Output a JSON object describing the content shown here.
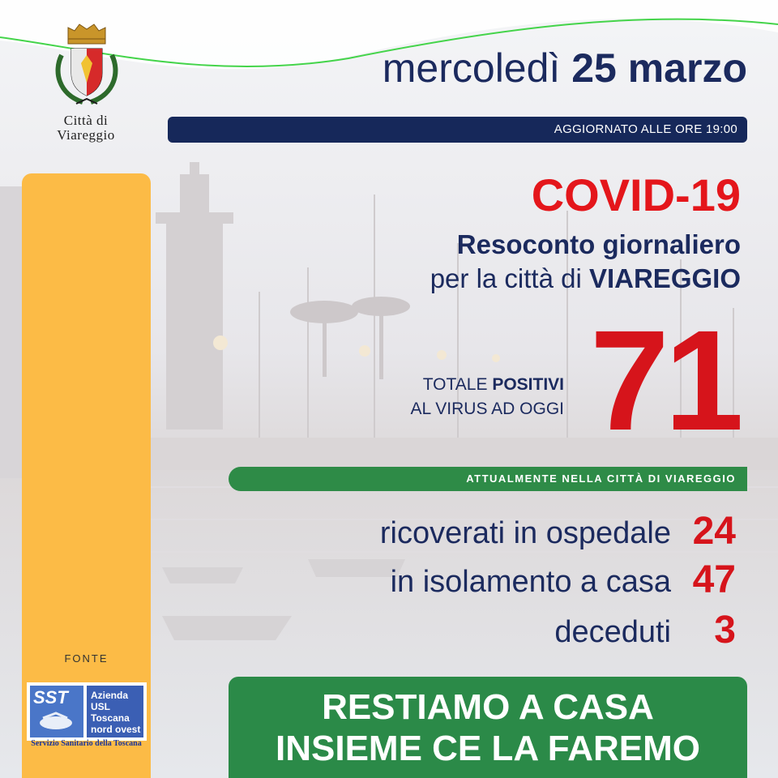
{
  "header": {
    "city_name_line1": "Città di",
    "city_name_line2": "Viareggio",
    "day": "mercoledì",
    "date": "25 marzo",
    "update": "AGGIORNATO ALLE ORE 19:00"
  },
  "title": {
    "covid": "COVID-19",
    "line1": "Resoconto giornaliero",
    "line2_prefix": "per la città di",
    "line2_city": "VIAREGGIO"
  },
  "total": {
    "label_a": "TOTALE",
    "label_b": "POSITIVI",
    "label_c": "AL VIRUS AD OGGI",
    "value": "71"
  },
  "section_bar": "ATTUALMENTE NELLA CITTÀ DI VIAREGGIO",
  "stats": [
    {
      "label": "ricoverati in ospedale",
      "value": "24"
    },
    {
      "label": "in isolamento a casa",
      "value": "47"
    },
    {
      "label": "deceduti",
      "value": "3"
    }
  ],
  "source": {
    "label": "FONTE",
    "logo_text": "SST",
    "logo_line1": "Azienda",
    "logo_line2": "USL",
    "logo_line3": "Toscana",
    "logo_line4": "nord ovest",
    "caption": "Servizio Sanitario della Toscana"
  },
  "footer": {
    "line1": "RESTIAMO A CASA",
    "line2": "INSIEME CE LA FAREMO"
  },
  "colors": {
    "navy": "#1b2a5e",
    "red": "#d6141b",
    "green": "#2b8a48",
    "yellow": "#fcbb46",
    "curve_green": "#44d44a"
  }
}
